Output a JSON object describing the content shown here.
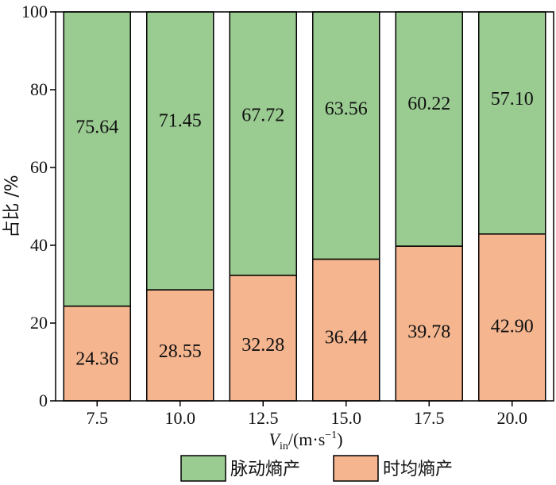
{
  "chart_data": {
    "type": "bar",
    "stacked": true,
    "categories": [
      "7.5",
      "10.0",
      "12.5",
      "15.0",
      "17.5",
      "20.0"
    ],
    "series": [
      {
        "name": "时均熵产",
        "values": [
          24.36,
          28.55,
          32.28,
          36.44,
          39.78,
          42.9
        ],
        "color": "#f4b58f"
      },
      {
        "name": "脉动熵产",
        "values": [
          75.64,
          71.45,
          67.72,
          63.56,
          60.22,
          57.1
        ],
        "color": "#9acb91"
      }
    ],
    "value_labels": [
      [
        "24.36",
        "28.55",
        "32.28",
        "36.44",
        "39.78",
        "42.90"
      ],
      [
        "75.64",
        "71.45",
        "67.72",
        "63.56",
        "60.22",
        "57.10"
      ]
    ],
    "xlabel": {
      "main": "V",
      "subscript": "in",
      "rest": "/(m·s",
      "superscript": "−1",
      "close": ")"
    },
    "ylabel": "占比 /%",
    "ylim": [
      0,
      100
    ],
    "yticks": [
      "0",
      "20",
      "40",
      "60",
      "80",
      "100"
    ],
    "legend": {
      "position": "bottom",
      "order": [
        "脉动熵产",
        "时均熵产"
      ]
    }
  }
}
